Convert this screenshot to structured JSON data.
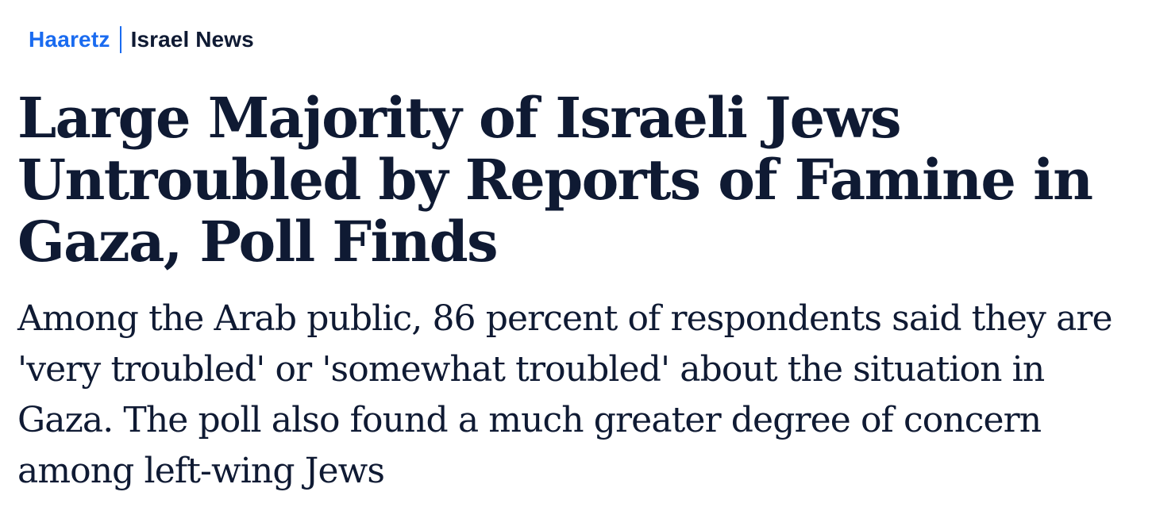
{
  "breadcrumb": {
    "brand": "Haaretz",
    "section": "Israel News"
  },
  "colors": {
    "brand": "#1a6bf0",
    "text": "#0f1a33",
    "background": "#ffffff"
  },
  "article": {
    "headline": "Large Majority of Israeli Jews Untroubled by Reports of Famine in Gaza, Poll Finds",
    "subheadline": "Among the Arab public, 86 percent of respondents said they are 'very troubled' or 'somewhat troubled' about the situation in Gaza. The poll also found a much greater degree of concern among left-wing Jews"
  }
}
